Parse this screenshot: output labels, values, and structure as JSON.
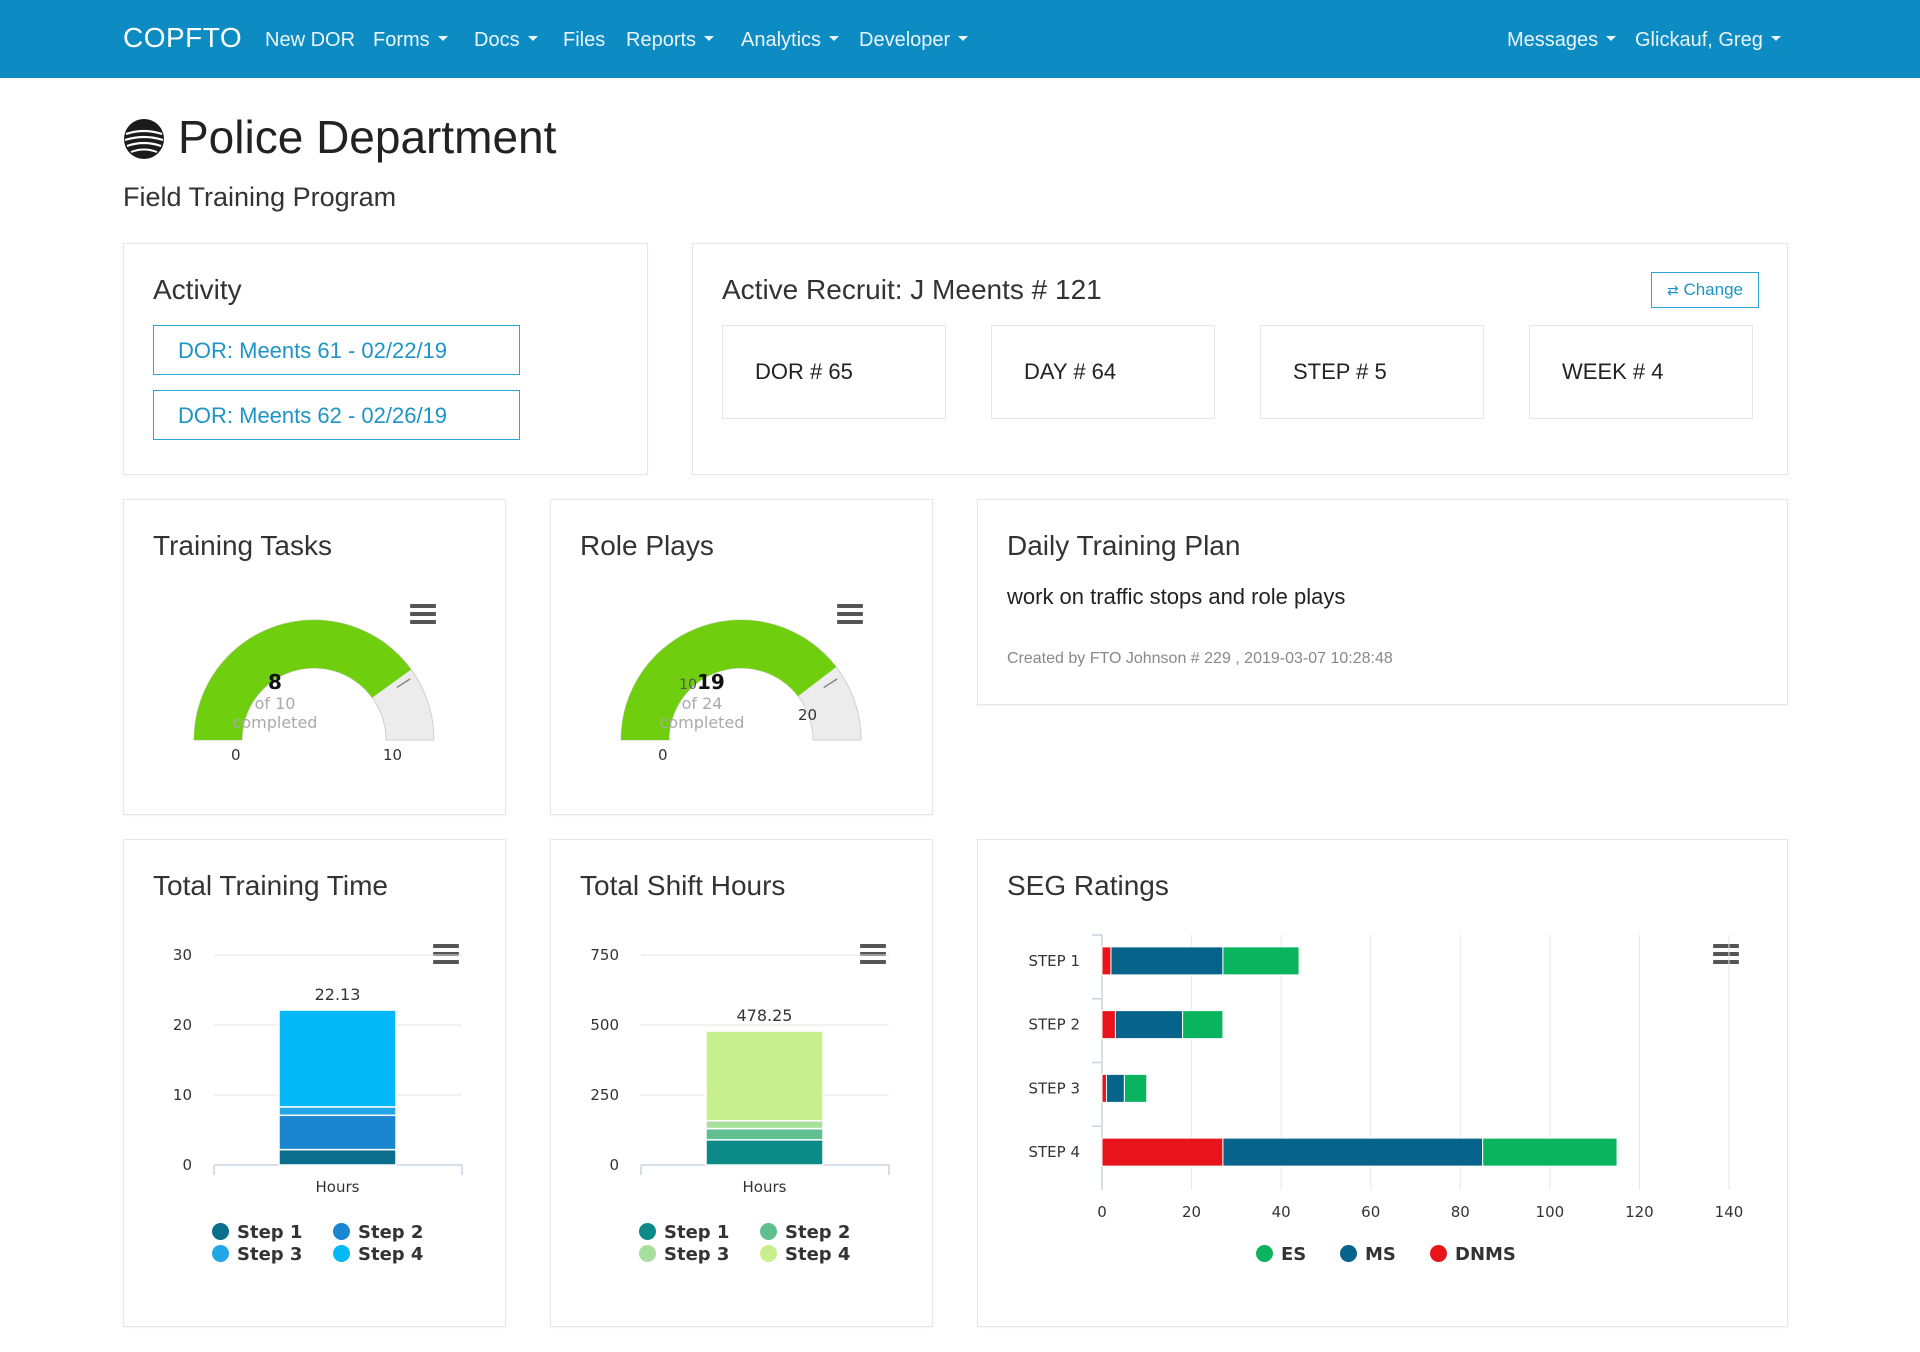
{
  "nav": {
    "brand": "COPFTO",
    "items": [
      {
        "label": "New DOR",
        "dropdown": false
      },
      {
        "label": "Forms",
        "dropdown": true
      },
      {
        "label": "Docs",
        "dropdown": true
      },
      {
        "label": "Files",
        "dropdown": false
      },
      {
        "label": "Reports",
        "dropdown": true
      },
      {
        "label": "Analytics",
        "dropdown": true
      },
      {
        "label": "Developer",
        "dropdown": true
      }
    ],
    "right": [
      {
        "label": "Messages",
        "dropdown": true
      },
      {
        "label": "Glickauf, Greg",
        "dropdown": true
      }
    ],
    "color": "#0d8bc3"
  },
  "page": {
    "title": "Police Department",
    "subtitle": "Field Training Program",
    "logo_icon": "globe-icon"
  },
  "activity": {
    "title": "Activity",
    "links": [
      "DOR: Meents 61 - 02/22/19",
      "DOR: Meents 62 - 02/26/19"
    ]
  },
  "recruit": {
    "title": "Active Recruit: J Meents # 121",
    "change_label": "Change",
    "change_icon": "swap-arrows-icon",
    "stats": [
      "DOR # 65",
      "DAY # 64",
      "STEP # 5",
      "WEEK # 4"
    ]
  },
  "training_tasks": {
    "title": "Training Tasks",
    "gauge": {
      "value": 8,
      "total": 10,
      "min": 0,
      "max": 10,
      "value_label": "8",
      "sub_1": "of 10",
      "sub_2": "completed",
      "min_label": "0",
      "max_label": "10",
      "color": "#6fcf0e"
    }
  },
  "role_plays": {
    "title": "Role Plays",
    "gauge": {
      "value": 19,
      "total": 24,
      "min": 0,
      "max": 24,
      "value_label": "19",
      "extra_tick": "10",
      "sub_1": "of 24",
      "sub_2": "completed",
      "min_label": "0",
      "max_label": "20",
      "color": "#6fcf0e"
    }
  },
  "daily_plan": {
    "title": "Daily Training Plan",
    "text": "work on traffic stops and role plays",
    "meta": "Created by FTO Johnson # 229 , 2019-03-07 10:28:48"
  },
  "training_time": {
    "title": "Total Training Time",
    "chart_data": {
      "type": "bar",
      "stacked": true,
      "categories": [
        "Hours"
      ],
      "series": [
        {
          "name": "Step 1",
          "values": [
            2.2
          ],
          "color": "#0a6e8c"
        },
        {
          "name": "Step 2",
          "values": [
            4.9
          ],
          "color": "#1b86d0"
        },
        {
          "name": "Step 3",
          "values": [
            1.2
          ],
          "color": "#23a6e6"
        },
        {
          "name": "Step 4",
          "values": [
            13.83
          ],
          "color": "#05b8f8"
        }
      ],
      "total_label": "22.13",
      "ylim": [
        0,
        30
      ],
      "yticks": [
        "0",
        "10",
        "20",
        "30"
      ],
      "xlabel": "Hours"
    }
  },
  "shift_hours": {
    "title": "Total Shift Hours",
    "chart_data": {
      "type": "bar",
      "stacked": true,
      "categories": [
        "Hours"
      ],
      "series": [
        {
          "name": "Step 1",
          "values": [
            90
          ],
          "color": "#0c8a87"
        },
        {
          "name": "Step 2",
          "values": [
            40
          ],
          "color": "#5fbf8f"
        },
        {
          "name": "Step 3",
          "values": [
            28
          ],
          "color": "#a9df9c"
        },
        {
          "name": "Step 4",
          "values": [
            320.25
          ],
          "color": "#c8ef8e"
        }
      ],
      "total_label": "478.25",
      "ylim": [
        0,
        750
      ],
      "yticks": [
        "0",
        "250",
        "500",
        "750"
      ],
      "xlabel": "Hours"
    }
  },
  "seg": {
    "title": "SEG Ratings",
    "chart_data": {
      "type": "bar",
      "orientation": "horizontal",
      "stacked": true,
      "categories": [
        "STEP 1",
        "STEP 2",
        "STEP 3",
        "STEP 4"
      ],
      "series": [
        {
          "name": "DNMS",
          "values": [
            2,
            3,
            1,
            27
          ],
          "color": "#e8131b"
        },
        {
          "name": "MS",
          "values": [
            25,
            15,
            4,
            58
          ],
          "color": "#06638a"
        },
        {
          "name": "ES",
          "values": [
            17,
            9,
            5,
            30
          ],
          "color": "#0ab35e"
        }
      ],
      "legend_order": [
        "ES",
        "MS",
        "DNMS"
      ],
      "xlim": [
        0,
        140
      ],
      "xticks": [
        "0",
        "20",
        "40",
        "60",
        "80",
        "100",
        "120",
        "140"
      ],
      "grid": true
    }
  }
}
